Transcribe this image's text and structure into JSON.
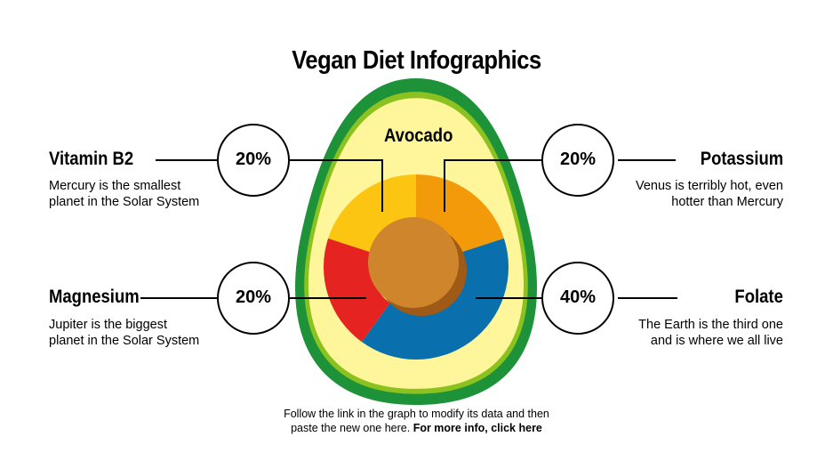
{
  "title": "Vegan Diet Infographics",
  "center_label": "Avocado",
  "items": [
    {
      "name": "Vitamin B2",
      "percent": "20%",
      "value": 20,
      "description": [
        "Mercury is the smallest",
        "planet in the Solar System"
      ],
      "color": "#fbc512"
    },
    {
      "name": "Potassium",
      "percent": "20%",
      "value": 20,
      "description": [
        "Venus is terribly hot, even",
        "hotter than Mercury"
      ],
      "color": "#f39a0b"
    },
    {
      "name": "Magnesium",
      "percent": "20%",
      "value": 20,
      "description": [
        "Jupiter is the biggest",
        "planet in the Solar System"
      ],
      "color": "#e52321"
    },
    {
      "name": "Folate",
      "percent": "40%",
      "value": 40,
      "description": [
        "The Earth is the third one",
        "and is where we all live"
      ],
      "color": "#0a70ad"
    }
  ],
  "footer": {
    "text_line1": "Follow the link in the graph to modify its data and then",
    "text_line2": "paste the new one here.",
    "link": "For more info, click here"
  },
  "colors": {
    "outer_skin": "#1e9238",
    "inner_skin": "#8cc21f",
    "flesh": "#fff59a",
    "seed": "#cf852b",
    "seed_shadow": "#9e5a16"
  }
}
